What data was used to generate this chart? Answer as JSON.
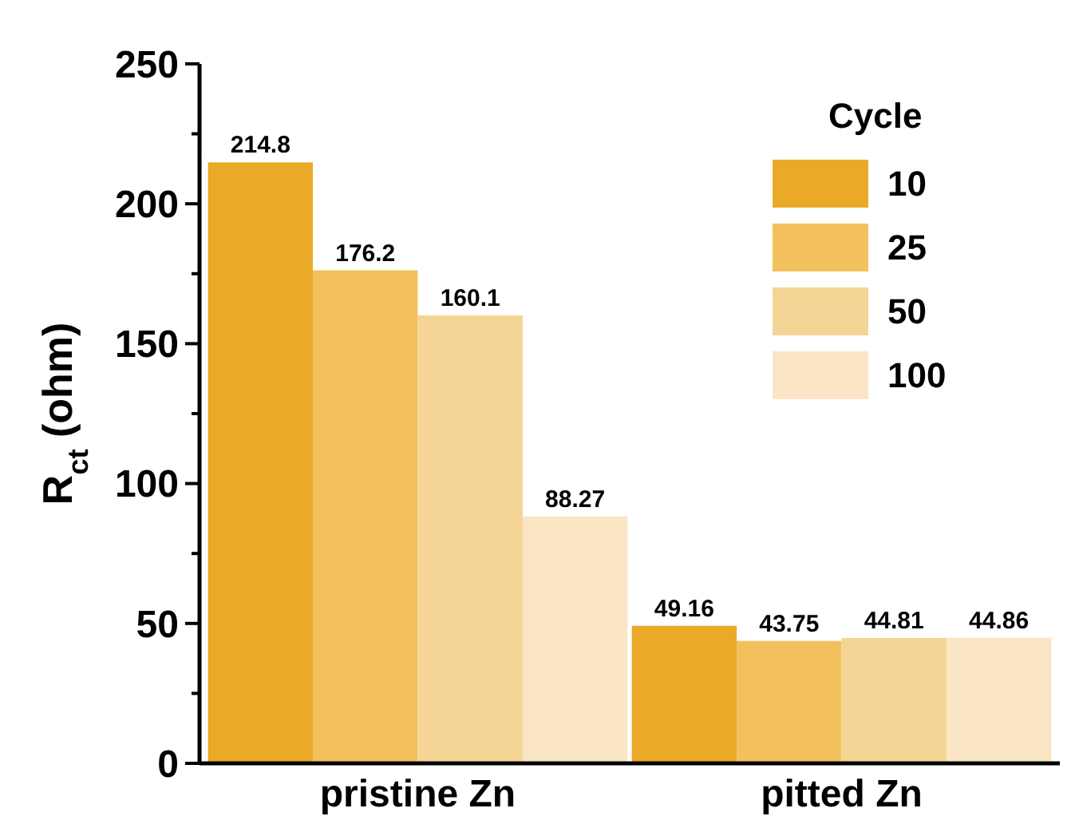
{
  "chart_data": {
    "type": "bar",
    "ylabel": "R$_{ct}$ (ohm)",
    "legend_title": "Cycle",
    "categories": [
      "pristine Zn",
      "pitted Zn"
    ],
    "series": [
      {
        "name": "10",
        "color": "#eba928",
        "values": [
          214.8,
          49.16
        ]
      },
      {
        "name": "25",
        "color": "#f2c15e",
        "values": [
          176.2,
          43.75
        ]
      },
      {
        "name": "50",
        "color": "#f5d595",
        "values": [
          160.1,
          44.81
        ]
      },
      {
        "name": "100",
        "color": "#fae6c4",
        "values": [
          88.27,
          44.86
        ]
      }
    ],
    "value_labels": [
      [
        "214.8",
        "49.16"
      ],
      [
        "176.2",
        "43.75"
      ],
      [
        "160.1",
        "44.81"
      ],
      [
        "88.27",
        "44.86"
      ]
    ],
    "ylim": [
      0,
      250
    ],
    "yticks": [
      0,
      {
        "value": 25,
        "label": null
      },
      50,
      {
        "value": 75,
        "label": null
      },
      100,
      {
        "value": 125,
        "label": null
      },
      150,
      {
        "value": 175,
        "label": null
      },
      200,
      {
        "value": 225,
        "label": null
      },
      250
    ],
    "grid": false,
    "legend": "top right"
  }
}
